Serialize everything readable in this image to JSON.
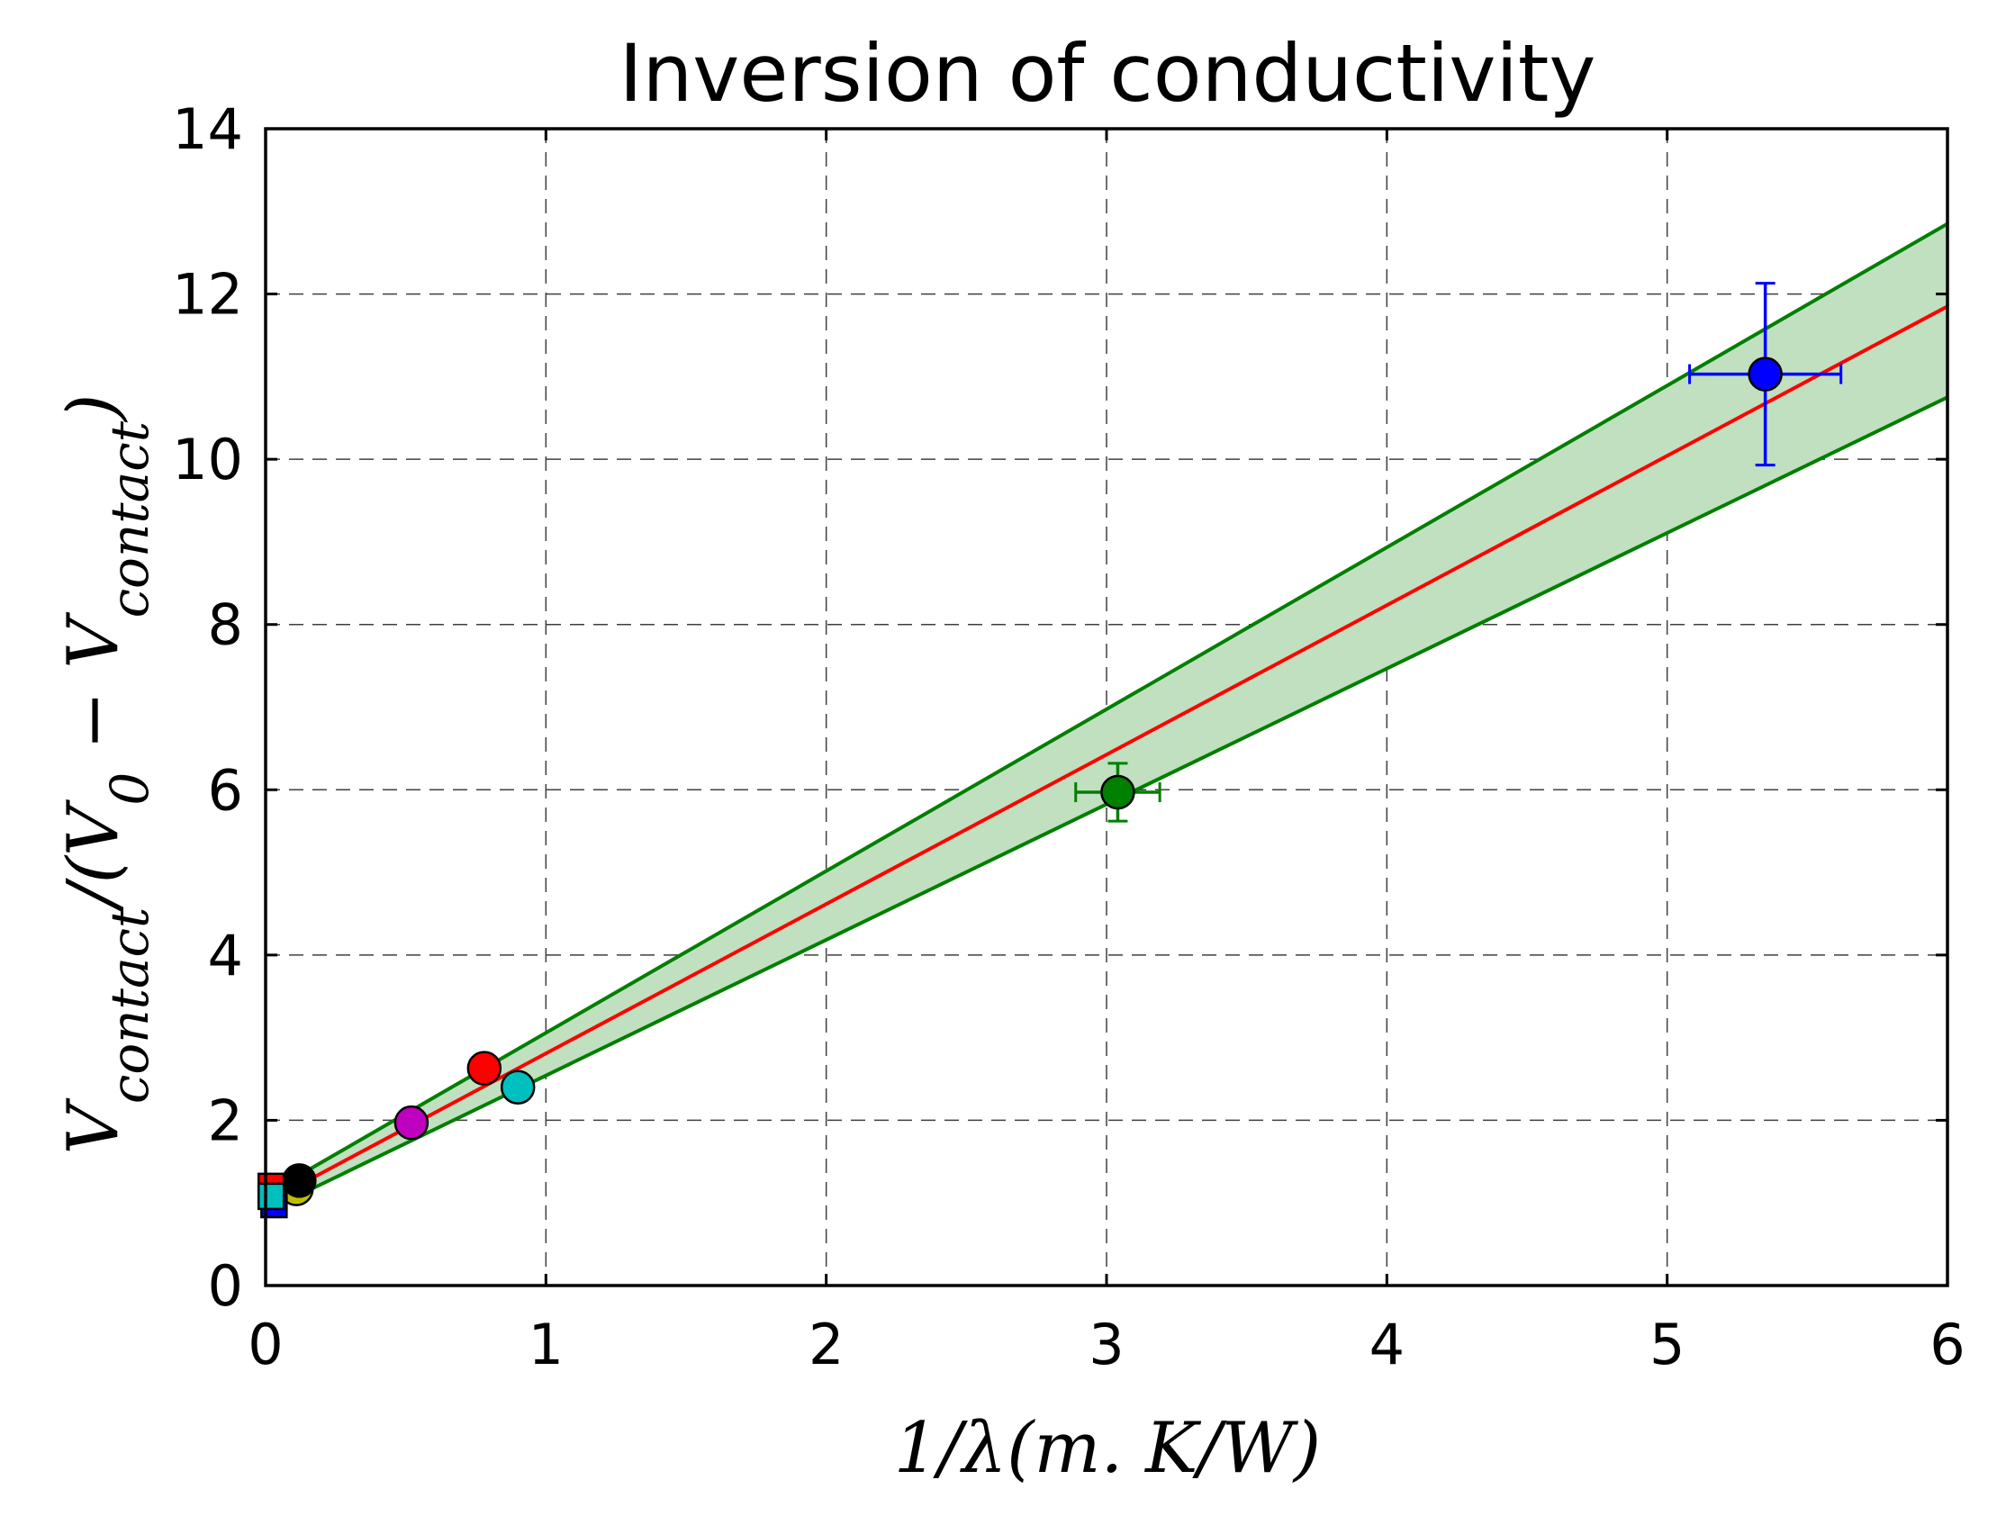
{
  "chart_data": {
    "type": "scatter",
    "title": "Inversion of conductivity",
    "xlabel": "1/λ(m. K/W)",
    "ylabel": "V_contact/(V_0 − V_contact)",
    "ylabel_parts": {
      "v1": "V",
      "s1": "contact",
      "mid": "/(",
      "v2": "V",
      "s2": "0",
      "minus": " − ",
      "v3": "V",
      "s3": "contact",
      "end": ")"
    },
    "xlim": [
      0,
      6
    ],
    "ylim": [
      0,
      14
    ],
    "xticks": [
      0,
      1,
      2,
      3,
      4,
      5,
      6
    ],
    "yticks": [
      0,
      2,
      4,
      6,
      8,
      10,
      12,
      14
    ],
    "xtick_labels": [
      "0",
      "1",
      "2",
      "3",
      "4",
      "5",
      "6"
    ],
    "ytick_labels": [
      "0",
      "2",
      "4",
      "6",
      "8",
      "10",
      "12",
      "14"
    ],
    "grid": true,
    "fit_line": {
      "color": "#ff0000",
      "x": [
        0,
        6
      ],
      "y": [
        1.0,
        11.85
      ]
    },
    "confidence_band": {
      "fill": "#c0e0c0",
      "edge_color": "#007f00",
      "x": [
        0,
        6
      ],
      "upper": [
        1.1,
        12.85
      ],
      "lower": [
        0.9,
        10.75
      ]
    },
    "points": [
      {
        "x": 5.35,
        "y": 11.03,
        "xerr": 0.27,
        "yerr": 1.1,
        "color": "#0000ff",
        "marker": "circle"
      },
      {
        "x": 3.04,
        "y": 5.97,
        "xerr": 0.15,
        "yerr": 0.35,
        "color": "#007f00",
        "marker": "circle"
      },
      {
        "x": 0.78,
        "y": 2.63,
        "color": "#ff0000",
        "marker": "circle"
      },
      {
        "x": 0.9,
        "y": 2.4,
        "color": "#00bfbf",
        "marker": "circle"
      },
      {
        "x": 0.52,
        "y": 1.97,
        "color": "#bf00bf",
        "marker": "circle"
      },
      {
        "x": 0.11,
        "y": 1.17,
        "color": "#bfbf00",
        "marker": "circle"
      },
      {
        "x": 0.12,
        "y": 1.27,
        "color": "#000000",
        "marker": "circle"
      },
      {
        "x": 0.02,
        "y": 1.2,
        "color": "#ff0000",
        "marker": "square"
      },
      {
        "x": 0.03,
        "y": 0.98,
        "color": "#0000ff",
        "marker": "square"
      },
      {
        "x": 0.02,
        "y": 1.08,
        "color": "#00bfbf",
        "marker": "square"
      }
    ]
  }
}
